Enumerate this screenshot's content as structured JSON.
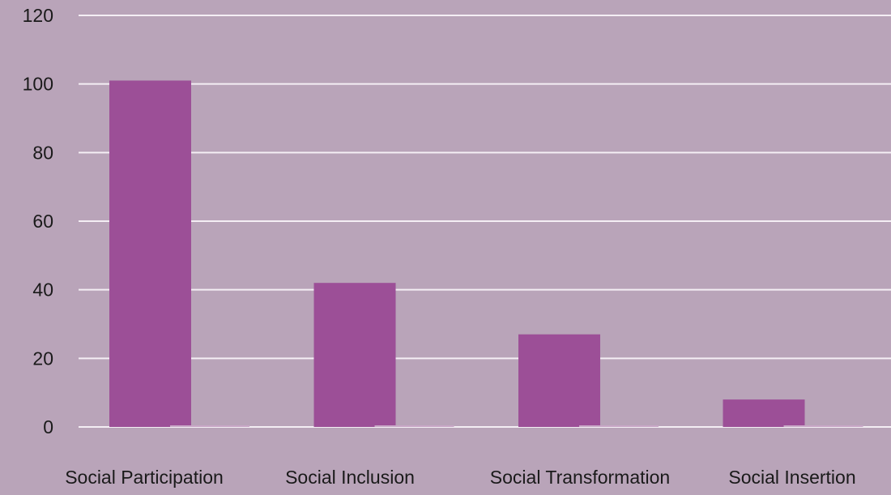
{
  "chart_data": {
    "type": "bar",
    "categories": [
      "Social Participation",
      "Social Inclusion",
      "Social Transformation",
      "Social Insertion"
    ],
    "series": [
      {
        "values": [
          101,
          42,
          27,
          8
        ],
        "color": "#9c4f97"
      },
      {
        "values": [
          0.3,
          0.3,
          0.3,
          0.3
        ],
        "color": "#c8a6c6"
      }
    ],
    "ylim": [
      0,
      120
    ],
    "yticks": [
      0,
      20,
      40,
      60,
      80,
      100,
      120
    ],
    "grid": true,
    "legend": "none",
    "background": "#b9a4b9",
    "gridline_color": "#f4eef4",
    "text_color": "#1a1a1a",
    "title": "",
    "xlabel": "",
    "ylabel": ""
  }
}
